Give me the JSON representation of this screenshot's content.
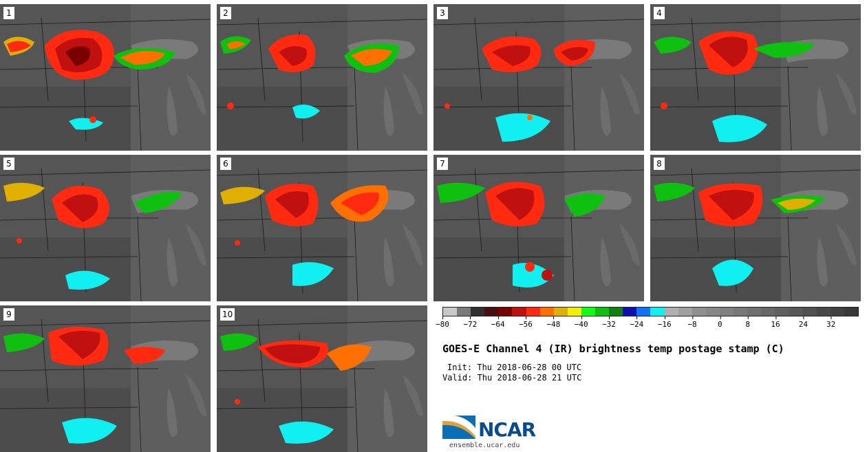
{
  "panels": [
    {
      "label": "1"
    },
    {
      "label": "2"
    },
    {
      "label": "3"
    },
    {
      "label": "4"
    },
    {
      "label": "5"
    },
    {
      "label": "6"
    },
    {
      "label": "7"
    },
    {
      "label": "8"
    },
    {
      "label": "9"
    },
    {
      "label": "10"
    }
  ],
  "colorbar": {
    "colors": [
      "#c8c8c8",
      "#7a7a7a",
      "#303030",
      "#4a1010",
      "#7a0000",
      "#c01010",
      "#ff2a10",
      "#ff7000",
      "#e0b000",
      "#f0f000",
      "#10ff10",
      "#10c010",
      "#108010",
      "#1010b0",
      "#1070ff",
      "#10f0f0",
      "#b0b0b0",
      "#a0a0a0",
      "#909090",
      "#888888",
      "#808080",
      "#787878",
      "#707070",
      "#686868",
      "#606060",
      "#585858",
      "#505050",
      "#484848",
      "#404040",
      "#383838"
    ],
    "ticks": [
      "−80",
      "−72",
      "−64",
      "−56",
      "−48",
      "−40",
      "−32",
      "−24",
      "−16",
      "−8",
      "0",
      "8",
      "16",
      "24",
      "32"
    ]
  },
  "title": "GOES-E Channel 4 (IR) brightness temp postage stamp (C)",
  "init": "Init: Thu 2018-06-28 00 UTC",
  "valid": "Valid: Thu 2018-06-28 21 UTC",
  "logo": {
    "text": "NCAR",
    "url": "ensemble.ucar.edu"
  }
}
